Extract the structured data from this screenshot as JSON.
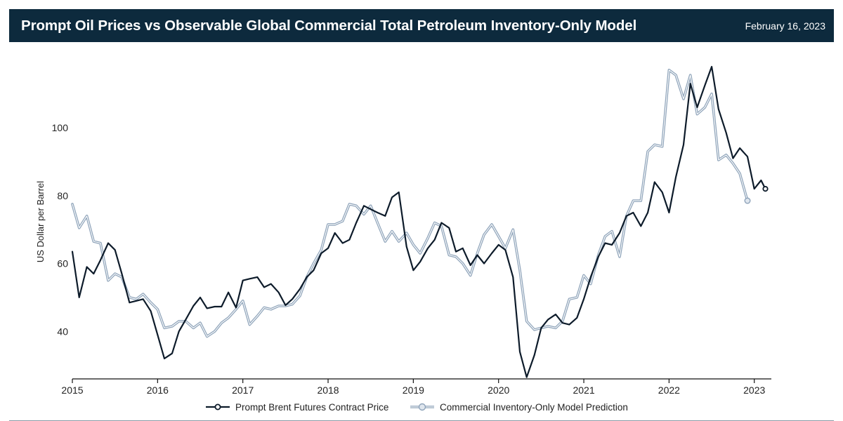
{
  "header": {
    "title": "Prompt Oil Prices vs Observable Global Commercial Total Petroleum Inventory-Only Model",
    "date": "February 16, 2023"
  },
  "colors": {
    "header_bg": "#0d2a3d",
    "brent": "#0d1b2a",
    "model": "#8fa4ba"
  },
  "chart_data": {
    "type": "line",
    "title": "Prompt Oil Prices vs Observable Global Commercial Total Petroleum Inventory-Only Model",
    "xlabel": "",
    "ylabel": "US Dollar per Barrel",
    "xlim": [
      2015.0,
      2023.2
    ],
    "ylim": [
      26,
      118
    ],
    "x_ticks": [
      2015,
      2016,
      2017,
      2018,
      2019,
      2020,
      2021,
      2022,
      2023
    ],
    "y_ticks": [
      40,
      60,
      80,
      100
    ],
    "legend_position": "bottom-center",
    "grid": false,
    "series": [
      {
        "name": "Prompt Brent Futures Contract Price",
        "color": "#0d1b2a",
        "style": "solid-dark",
        "points": [
          [
            2015.0,
            63.5
          ],
          [
            2015.08,
            50.0
          ],
          [
            2015.17,
            59.0
          ],
          [
            2015.25,
            57.0
          ],
          [
            2015.33,
            61.0
          ],
          [
            2015.42,
            66.0
          ],
          [
            2015.5,
            64.0
          ],
          [
            2015.58,
            57.0
          ],
          [
            2015.67,
            48.5
          ],
          [
            2015.75,
            49.0
          ],
          [
            2015.83,
            49.5
          ],
          [
            2015.92,
            46.0
          ],
          [
            2016.0,
            39.0
          ],
          [
            2016.08,
            32.0
          ],
          [
            2016.17,
            33.5
          ],
          [
            2016.25,
            40.0
          ],
          [
            2016.33,
            43.5
          ],
          [
            2016.42,
            47.5
          ],
          [
            2016.5,
            50.0
          ],
          [
            2016.58,
            46.8
          ],
          [
            2016.67,
            47.3
          ],
          [
            2016.75,
            47.3
          ],
          [
            2016.83,
            51.5
          ],
          [
            2016.92,
            47.0
          ],
          [
            2017.0,
            55.0
          ],
          [
            2017.08,
            55.5
          ],
          [
            2017.17,
            56.0
          ],
          [
            2017.25,
            53.0
          ],
          [
            2017.33,
            54.0
          ],
          [
            2017.42,
            51.5
          ],
          [
            2017.5,
            47.7
          ],
          [
            2017.58,
            49.5
          ],
          [
            2017.67,
            52.5
          ],
          [
            2017.75,
            56.0
          ],
          [
            2017.83,
            58.0
          ],
          [
            2017.92,
            63.0
          ],
          [
            2018.0,
            64.5
          ],
          [
            2018.08,
            69.0
          ],
          [
            2018.17,
            66.0
          ],
          [
            2018.25,
            67.0
          ],
          [
            2018.33,
            72.0
          ],
          [
            2018.42,
            77.0
          ],
          [
            2018.5,
            76.0
          ],
          [
            2018.58,
            75.0
          ],
          [
            2018.67,
            74.0
          ],
          [
            2018.75,
            79.5
          ],
          [
            2018.83,
            81.0
          ],
          [
            2018.92,
            65.0
          ],
          [
            2019.0,
            58.0
          ],
          [
            2019.08,
            60.5
          ],
          [
            2019.17,
            64.5
          ],
          [
            2019.25,
            67.0
          ],
          [
            2019.33,
            72.0
          ],
          [
            2019.42,
            70.5
          ],
          [
            2019.5,
            63.5
          ],
          [
            2019.58,
            64.5
          ],
          [
            2019.67,
            59.5
          ],
          [
            2019.75,
            62.5
          ],
          [
            2019.83,
            60.0
          ],
          [
            2019.92,
            63.0
          ],
          [
            2020.0,
            65.5
          ],
          [
            2020.08,
            64.0
          ],
          [
            2020.17,
            56.0
          ],
          [
            2020.25,
            34.0
          ],
          [
            2020.33,
            26.5
          ],
          [
            2020.42,
            33.0
          ],
          [
            2020.5,
            41.0
          ],
          [
            2020.58,
            43.5
          ],
          [
            2020.67,
            45.0
          ],
          [
            2020.75,
            42.5
          ],
          [
            2020.83,
            42.0
          ],
          [
            2020.92,
            44.0
          ],
          [
            2021.0,
            49.5
          ],
          [
            2021.08,
            56.0
          ],
          [
            2021.17,
            62.0
          ],
          [
            2021.25,
            66.0
          ],
          [
            2021.33,
            65.5
          ],
          [
            2021.42,
            69.0
          ],
          [
            2021.5,
            74.0
          ],
          [
            2021.58,
            75.0
          ],
          [
            2021.67,
            71.0
          ],
          [
            2021.75,
            75.0
          ],
          [
            2021.83,
            84.0
          ],
          [
            2021.92,
            81.0
          ],
          [
            2022.0,
            75.0
          ],
          [
            2022.08,
            85.5
          ],
          [
            2022.17,
            95.0
          ],
          [
            2022.25,
            113.0
          ],
          [
            2022.33,
            106.0
          ],
          [
            2022.42,
            112.5
          ],
          [
            2022.5,
            118.0
          ],
          [
            2022.58,
            105.5
          ],
          [
            2022.67,
            98.5
          ],
          [
            2022.75,
            91.0
          ],
          [
            2022.83,
            94.0
          ],
          [
            2022.92,
            91.5
          ],
          [
            2023.0,
            82.0
          ],
          [
            2023.08,
            84.5
          ],
          [
            2023.13,
            82.0
          ]
        ]
      },
      {
        "name": "Commercial Inventory-Only Model Prediction",
        "color": "#8fa4ba",
        "style": "double-light",
        "points": [
          [
            2015.0,
            77.5
          ],
          [
            2015.08,
            70.5
          ],
          [
            2015.17,
            74.0
          ],
          [
            2015.25,
            66.5
          ],
          [
            2015.33,
            66.0
          ],
          [
            2015.42,
            55.0
          ],
          [
            2015.5,
            57.0
          ],
          [
            2015.58,
            56.0
          ],
          [
            2015.67,
            50.0
          ],
          [
            2015.75,
            49.5
          ],
          [
            2015.83,
            51.0
          ],
          [
            2015.92,
            48.5
          ],
          [
            2016.0,
            46.5
          ],
          [
            2016.08,
            41.0
          ],
          [
            2016.17,
            41.5
          ],
          [
            2016.25,
            43.0
          ],
          [
            2016.33,
            43.0
          ],
          [
            2016.42,
            41.0
          ],
          [
            2016.5,
            42.5
          ],
          [
            2016.58,
            38.5
          ],
          [
            2016.67,
            40.0
          ],
          [
            2016.75,
            42.5
          ],
          [
            2016.83,
            44.0
          ],
          [
            2016.92,
            46.5
          ],
          [
            2017.0,
            49.0
          ],
          [
            2017.08,
            42.0
          ],
          [
            2017.17,
            44.5
          ],
          [
            2017.25,
            47.0
          ],
          [
            2017.33,
            46.5
          ],
          [
            2017.42,
            47.5
          ],
          [
            2017.5,
            47.5
          ],
          [
            2017.58,
            48.0
          ],
          [
            2017.67,
            50.5
          ],
          [
            2017.75,
            56.0
          ],
          [
            2017.83,
            60.0
          ],
          [
            2017.92,
            64.0
          ],
          [
            2018.0,
            71.5
          ],
          [
            2018.08,
            71.5
          ],
          [
            2018.17,
            72.5
          ],
          [
            2018.25,
            77.5
          ],
          [
            2018.33,
            77.0
          ],
          [
            2018.42,
            74.5
          ],
          [
            2018.5,
            77.0
          ],
          [
            2018.58,
            72.0
          ],
          [
            2018.67,
            66.5
          ],
          [
            2018.75,
            69.5
          ],
          [
            2018.83,
            66.5
          ],
          [
            2018.92,
            69.0
          ],
          [
            2019.0,
            65.5
          ],
          [
            2019.08,
            63.0
          ],
          [
            2019.17,
            67.5
          ],
          [
            2019.25,
            72.0
          ],
          [
            2019.33,
            71.0
          ],
          [
            2019.42,
            62.5
          ],
          [
            2019.5,
            62.0
          ],
          [
            2019.58,
            60.0
          ],
          [
            2019.67,
            56.5
          ],
          [
            2019.75,
            63.0
          ],
          [
            2019.83,
            68.5
          ],
          [
            2019.92,
            71.5
          ],
          [
            2020.0,
            68.0
          ],
          [
            2020.08,
            64.5
          ],
          [
            2020.17,
            70.0
          ],
          [
            2020.25,
            58.0
          ],
          [
            2020.33,
            43.0
          ],
          [
            2020.42,
            40.5
          ],
          [
            2020.5,
            41.0
          ],
          [
            2020.58,
            41.5
          ],
          [
            2020.67,
            41.0
          ],
          [
            2020.75,
            43.0
          ],
          [
            2020.83,
            49.5
          ],
          [
            2020.92,
            50.0
          ],
          [
            2021.0,
            56.5
          ],
          [
            2021.08,
            54.0
          ],
          [
            2021.17,
            62.5
          ],
          [
            2021.25,
            68.0
          ],
          [
            2021.33,
            69.5
          ],
          [
            2021.42,
            62.0
          ],
          [
            2021.5,
            74.0
          ],
          [
            2021.58,
            78.5
          ],
          [
            2021.67,
            78.5
          ],
          [
            2021.75,
            93.0
          ],
          [
            2021.83,
            95.0
          ],
          [
            2021.92,
            94.5
          ],
          [
            2022.0,
            117.0
          ],
          [
            2022.08,
            115.5
          ],
          [
            2022.17,
            108.5
          ],
          [
            2022.25,
            115.5
          ],
          [
            2022.33,
            104.0
          ],
          [
            2022.42,
            106.0
          ],
          [
            2022.5,
            110.0
          ],
          [
            2022.58,
            90.5
          ],
          [
            2022.67,
            92.0
          ],
          [
            2022.75,
            89.5
          ],
          [
            2022.83,
            86.5
          ],
          [
            2022.92,
            78.5
          ]
        ]
      }
    ]
  }
}
